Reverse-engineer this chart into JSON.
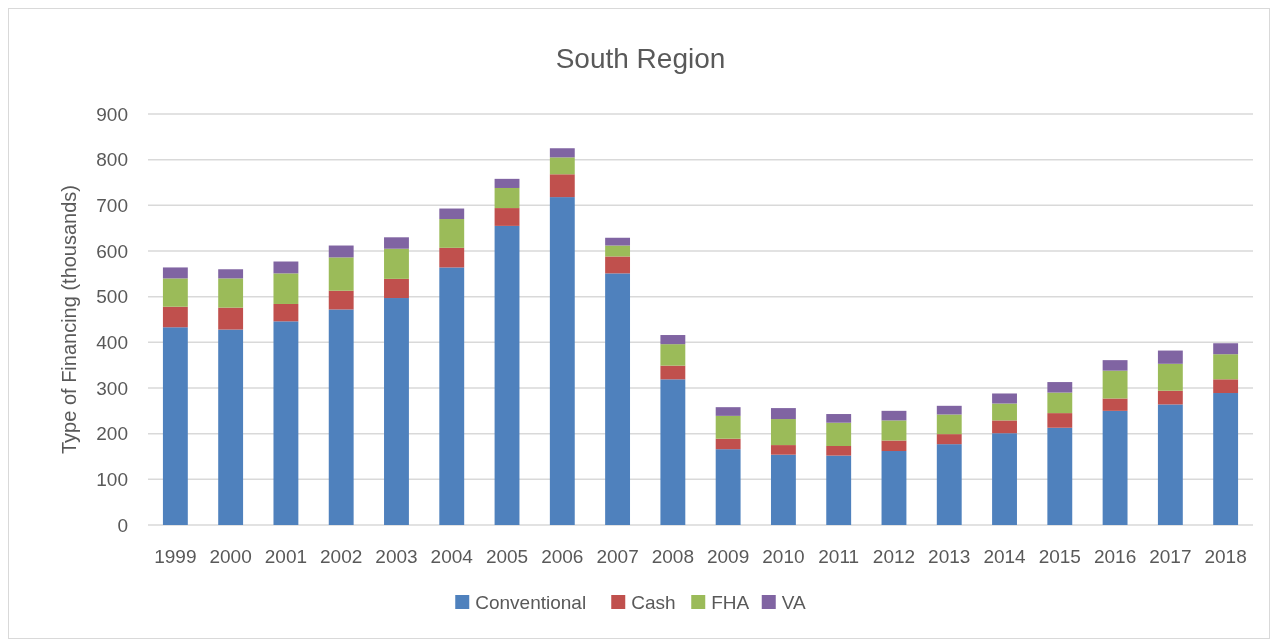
{
  "chart_data": {
    "type": "bar",
    "title": "South Region",
    "ylabel": "Type of Financing (thousands)",
    "stacked": true,
    "grid": "y",
    "legend": "bottom",
    "categories": [
      "1999",
      "2000",
      "2001",
      "2002",
      "2003",
      "2004",
      "2005",
      "2006",
      "2007",
      "2008",
      "2009",
      "2010",
      "2011",
      "2012",
      "2013",
      "2014",
      "2015",
      "2016",
      "2017",
      "2018"
    ],
    "ylim": [
      0,
      900
    ],
    "yticks": [
      0,
      100,
      200,
      300,
      400,
      500,
      600,
      700,
      800,
      900
    ],
    "series": [
      {
        "name": "Conventional",
        "color": "#4f81bd",
        "values": [
          433,
          428,
          446,
          472,
          497,
          564,
          655,
          718,
          551,
          319,
          166,
          154,
          152,
          162,
          177,
          201,
          213,
          250,
          264,
          289
        ]
      },
      {
        "name": "Cash",
        "color": "#c0504d",
        "values": [
          45,
          48,
          38,
          41,
          42,
          43,
          39,
          50,
          37,
          30,
          23,
          21,
          21,
          23,
          22,
          28,
          32,
          27,
          30,
          30
        ]
      },
      {
        "name": "FHA",
        "color": "#9bbb59",
        "values": [
          62,
          64,
          67,
          73,
          66,
          63,
          44,
          37,
          24,
          47,
          50,
          57,
          51,
          44,
          43,
          37,
          45,
          61,
          59,
          55
        ]
      },
      {
        "name": "VA",
        "color": "#8064a2",
        "values": [
          24,
          20,
          26,
          26,
          25,
          23,
          20,
          20,
          17,
          20,
          19,
          24,
          19,
          21,
          19,
          22,
          23,
          23,
          29,
          24
        ]
      }
    ]
  }
}
